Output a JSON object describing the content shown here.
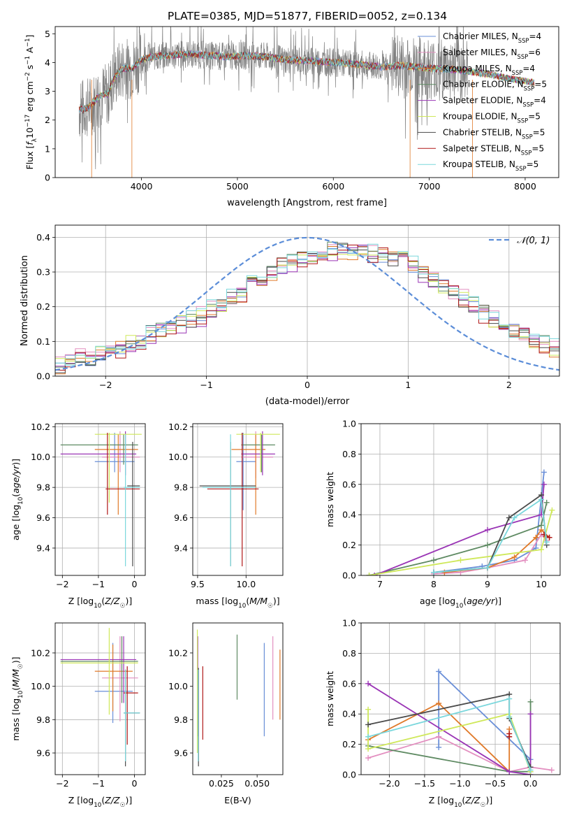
{
  "figure": {
    "title": "PLATE=0385, MJD=51877, FIBERID=0052, z=0.134"
  },
  "colors": {
    "chabrier_miles": "#6a8fd8",
    "salpeter_miles": "#e38fc0",
    "kroupa_miles": "#e07a2a",
    "chabrier_elodie": "#5e8a62",
    "salpeter_elodie": "#9a35b5",
    "kroupa_elodie": "#cfe85a",
    "chabrier_stelib": "#4a4a4a",
    "salpeter_stelib": "#b01818",
    "kroupa_stelib": "#7ad7dc",
    "data_spectrum": "#808080",
    "gauss_curve": "#5b8dd8"
  },
  "chart_data": [
    {
      "id": "spectrum",
      "type": "line",
      "title": "PLATE=0385, MJD=51877, FIBERID=0052, z=0.134",
      "xlabel": "wavelength [Angstrom, rest frame]",
      "xlim": [
        3100,
        8350
      ],
      "ylim": [
        0,
        5.25
      ],
      "xticks": [
        4000,
        5000,
        6000,
        7000,
        8000
      ],
      "yticks": [
        0,
        1,
        2,
        3,
        4,
        5
      ],
      "grid": false,
      "legend_placement": "right",
      "legend": [
        {
          "model": "Chabrier MILES",
          "n": "4"
        },
        {
          "model": "Salpeter MILES",
          "n": "6"
        },
        {
          "model": "Kroupa MILES",
          "n": "4"
        },
        {
          "model": "Chabrier ELODIE",
          "n": "5"
        },
        {
          "model": "Salpeter ELODIE",
          "n": "4"
        },
        {
          "model": "Kroupa ELODIE",
          "n": "5"
        },
        {
          "model": "Chabrier STELIB",
          "n": "5"
        },
        {
          "model": "Salpeter STELIB",
          "n": "5"
        },
        {
          "model": "Kroupa STELIB",
          "n": "5"
        }
      ],
      "data_range": [
        3350,
        7400
      ],
      "model_continuum": [
        [
          3350,
          2.35
        ],
        [
          3450,
          2.45
        ],
        [
          3500,
          2.6
        ],
        [
          3550,
          2.8
        ],
        [
          3600,
          2.9
        ],
        [
          3650,
          2.9
        ],
        [
          3700,
          3.4
        ],
        [
          3800,
          3.8
        ],
        [
          3900,
          3.8
        ],
        [
          4000,
          4.1
        ],
        [
          4100,
          4.2
        ],
        [
          4300,
          4.25
        ],
        [
          4500,
          4.3
        ],
        [
          4700,
          4.25
        ],
        [
          4900,
          4.2
        ],
        [
          5100,
          4.25
        ],
        [
          5300,
          4.2
        ],
        [
          5500,
          4.1
        ],
        [
          5800,
          4.05
        ],
        [
          6200,
          3.95
        ],
        [
          6500,
          3.85
        ],
        [
          6700,
          3.9
        ],
        [
          7000,
          3.8
        ],
        [
          7300,
          3.75
        ],
        [
          7600,
          3.6
        ],
        [
          7900,
          3.4
        ],
        [
          8100,
          3.3
        ]
      ],
      "model_cut_x": [
        3480,
        3900,
        6800,
        7450
      ]
    },
    {
      "id": "residuals",
      "type": "bar",
      "xlabel": "(data-model)/error",
      "ylabel": "Normed distribution",
      "xlim": [
        -2.5,
        2.5
      ],
      "ylim": [
        0,
        0.435
      ],
      "xticks": [
        -2,
        -1,
        0,
        1,
        2
      ],
      "yticks": [
        0.0,
        0.1,
        0.2,
        0.3,
        0.4
      ],
      "grid": true,
      "legend_placement": "top-right",
      "bin_width": 0.1,
      "curve_label": "𝒩(0, 1)",
      "base_hist": [
        0.03,
        0.04,
        0.05,
        0.05,
        0.06,
        0.07,
        0.08,
        0.09,
        0.1,
        0.12,
        0.13,
        0.14,
        0.15,
        0.16,
        0.17,
        0.19,
        0.2,
        0.22,
        0.24,
        0.26,
        0.28,
        0.3,
        0.32,
        0.33,
        0.34,
        0.35,
        0.35,
        0.36,
        0.36,
        0.36,
        0.36,
        0.35,
        0.35,
        0.34,
        0.33,
        0.32,
        0.3,
        0.28,
        0.26,
        0.24,
        0.22,
        0.2,
        0.18,
        0.16,
        0.15,
        0.13,
        0.12,
        0.1,
        0.09,
        0.08
      ]
    },
    {
      "id": "age_vs_Z",
      "type": "scatter",
      "xlabel": "Z [log10(Z/Z☉)]",
      "ylabel": "age  [log10(age/yr)]",
      "xlim": [
        -2.2,
        0.3
      ],
      "ylim": [
        9.22,
        10.22
      ],
      "xticks": [
        -2,
        -1,
        0
      ],
      "yticks": [
        9.4,
        9.6,
        9.8,
        10.0,
        10.2
      ],
      "grid": true,
      "points": [
        {
          "m": "chabrier_miles",
          "x": -0.55,
          "xe": [
            -1.1,
            0.0
          ],
          "y": 9.97,
          "ye": [
            9.9,
            10.16
          ]
        },
        {
          "m": "salpeter_miles",
          "x": -0.4,
          "xe": [
            -0.9,
            0.15
          ],
          "y": 10.0,
          "ye": [
            9.9,
            10.17
          ]
        },
        {
          "m": "kroupa_miles",
          "x": -0.45,
          "xe": [
            -1.1,
            0.1
          ],
          "y": 10.05,
          "ye": [
            9.62,
            10.15
          ]
        },
        {
          "m": "chabrier_elodie",
          "x": -0.3,
          "xe": [
            -2.05,
            0.1
          ],
          "y": 10.08,
          "ye": [
            9.95,
            10.15
          ]
        },
        {
          "m": "salpeter_elodie",
          "x": -0.25,
          "xe": [
            -2.05,
            0.05
          ],
          "y": 10.02,
          "ye": [
            9.88,
            10.17
          ]
        },
        {
          "m": "kroupa_elodie",
          "x": -0.7,
          "xe": [
            -1.1,
            0.2
          ],
          "y": 10.15,
          "ye": [
            9.7,
            10.16
          ]
        },
        {
          "m": "chabrier_stelib",
          "x": -0.05,
          "xe": [
            -0.2,
            0.15
          ],
          "y": 9.81,
          "ye": [
            9.28,
            10.1
          ]
        },
        {
          "m": "salpeter_stelib",
          "x": -0.75,
          "xe": [
            -0.8,
            0.15
          ],
          "y": 9.79,
          "ye": [
            9.62,
            10.16
          ]
        },
        {
          "m": "kroupa_stelib",
          "x": -0.25,
          "xe": [
            -0.3,
            0.15
          ],
          "y": 9.8,
          "ye": [
            9.28,
            10.15
          ]
        }
      ]
    },
    {
      "id": "age_vs_mass",
      "type": "scatter",
      "xlabel": "mass [log10(M/M☉)]",
      "xlim": [
        9.45,
        10.38
      ],
      "ylim": [
        9.22,
        10.22
      ],
      "xticks": [
        9.5,
        10.0
      ],
      "yticks": [
        9.4,
        9.6,
        9.8,
        10.0,
        10.2
      ],
      "grid": true,
      "points": [
        {
          "m": "chabrier_miles",
          "x": 9.97,
          "xe": [
            9.9,
            10.1
          ],
          "y": 9.97,
          "ye": [
            9.65,
            10.16
          ]
        },
        {
          "m": "salpeter_miles",
          "x": 10.1,
          "xe": [
            9.95,
            10.28
          ],
          "y": 10.0,
          "ye": [
            9.86,
            10.17
          ]
        },
        {
          "m": "kroupa_miles",
          "x": 10.1,
          "xe": [
            9.85,
            10.2
          ],
          "y": 10.05,
          "ye": [
            9.62,
            10.15
          ]
        },
        {
          "m": "chabrier_elodie",
          "x": 10.16,
          "xe": [
            9.95,
            10.3
          ],
          "y": 10.08,
          "ye": [
            9.9,
            10.15
          ]
        },
        {
          "m": "salpeter_elodie",
          "x": 10.17,
          "xe": [
            9.95,
            10.3
          ],
          "y": 10.02,
          "ye": [
            9.88,
            10.17
          ]
        },
        {
          "m": "kroupa_elodie",
          "x": 10.15,
          "xe": [
            9.9,
            10.35
          ],
          "y": 10.15,
          "ye": [
            9.9,
            10.16
          ]
        },
        {
          "m": "chabrier_stelib",
          "x": 9.84,
          "xe": [
            9.52,
            10.1
          ],
          "y": 9.81,
          "ye": [
            9.28,
            10.1
          ]
        },
        {
          "m": "salpeter_stelib",
          "x": 9.96,
          "xe": [
            9.6,
            10.13
          ],
          "y": 9.79,
          "ye": [
            9.28,
            10.16
          ]
        },
        {
          "m": "kroupa_stelib",
          "x": 9.84,
          "xe": [
            9.55,
            10.1
          ],
          "y": 9.8,
          "ye": [
            9.28,
            10.15
          ]
        }
      ]
    },
    {
      "id": "weight_vs_age",
      "type": "line",
      "xlabel": "age  [log10(age/yr)]",
      "ylabel": "mass weight",
      "xlim": [
        6.65,
        10.35
      ],
      "ylim": [
        0,
        1
      ],
      "xticks": [
        7,
        8,
        9,
        10
      ],
      "yticks": [
        0.0,
        0.2,
        0.4,
        0.6,
        0.8,
        1.0
      ],
      "grid": true,
      "series": [
        {
          "m": "chabrier_miles",
          "x": [
            8.0,
            8.9,
            9.5,
            9.9,
            10.05
          ],
          "y": [
            0.02,
            0.06,
            0.1,
            0.18,
            0.68
          ]
        },
        {
          "m": "salpeter_miles",
          "x": [
            8.0,
            8.5,
            9.0,
            9.7,
            10.0,
            10.1
          ],
          "y": [
            0.01,
            0.02,
            0.05,
            0.1,
            0.27,
            0.23
          ]
        },
        {
          "m": "kroupa_miles",
          "x": [
            8.2,
            9.0,
            9.5,
            9.9,
            10.0,
            10.15
          ],
          "y": [
            0.02,
            0.05,
            0.12,
            0.25,
            0.3,
            0.25
          ]
        },
        {
          "m": "chabrier_elodie",
          "x": [
            6.8,
            8.0,
            9.0,
            10.0,
            10.1
          ],
          "y": [
            0.0,
            0.1,
            0.2,
            0.33,
            0.48
          ]
        },
        {
          "m": "salpeter_elodie",
          "x": [
            6.9,
            9.0,
            10.0,
            10.05
          ],
          "y": [
            0.0,
            0.3,
            0.4,
            0.6
          ]
        },
        {
          "m": "kroupa_elodie",
          "x": [
            6.8,
            8.5,
            10.0,
            10.2
          ],
          "y": [
            0.0,
            0.1,
            0.17,
            0.43
          ]
        },
        {
          "m": "chabrier_stelib",
          "x": [
            8.0,
            9.0,
            9.4,
            10.0,
            10.1
          ],
          "y": [
            0.02,
            0.05,
            0.38,
            0.53,
            0.2
          ]
        },
        {
          "m": "salpeter_stelib",
          "x": [
            10.05,
            10.15
          ],
          "y": [
            0.27,
            0.25
          ]
        },
        {
          "m": "kroupa_stelib",
          "x": [
            8.0,
            9.0,
            9.5,
            10.0,
            10.1
          ],
          "y": [
            0.02,
            0.05,
            0.38,
            0.5,
            0.22
          ]
        }
      ]
    },
    {
      "id": "mass_vs_Z",
      "type": "scatter",
      "xlabel": "Z [log10(Z/Z☉)]",
      "ylabel": "mass [log10(M/M☉)]",
      "xlim": [
        -2.2,
        0.3
      ],
      "ylim": [
        9.47,
        10.38
      ],
      "xticks": [
        -2,
        -1,
        0
      ],
      "yticks": [
        9.6,
        9.8,
        10.0,
        10.2
      ],
      "grid": true,
      "points": [
        {
          "m": "chabrier_miles",
          "x": -0.6,
          "xe": [
            -1.1,
            -0.05
          ],
          "y": 9.97,
          "ye": [
            9.78,
            10.26
          ]
        },
        {
          "m": "salpeter_miles",
          "x": -0.4,
          "xe": [
            -0.9,
            0.1
          ],
          "y": 10.05,
          "ye": [
            9.79,
            10.3
          ]
        },
        {
          "m": "kroupa_miles",
          "x": -0.6,
          "xe": [
            -1.1,
            -0.05
          ],
          "y": 10.09,
          "ye": [
            9.85,
            10.25
          ]
        },
        {
          "m": "chabrier_elodie",
          "x": -0.35,
          "xe": [
            -2.05,
            0.1
          ],
          "y": 10.15,
          "ye": [
            9.9,
            10.3
          ]
        },
        {
          "m": "salpeter_elodie",
          "x": -0.3,
          "xe": [
            -2.05,
            0.05
          ],
          "y": 10.16,
          "ye": [
            9.9,
            10.3
          ]
        },
        {
          "m": "kroupa_elodie",
          "x": -0.7,
          "xe": [
            -2.05,
            0.1
          ],
          "y": 10.14,
          "ye": [
            9.83,
            10.35
          ]
        },
        {
          "m": "chabrier_stelib",
          "x": -0.25,
          "xe": [
            -0.3,
            0.15
          ],
          "y": 9.84,
          "ye": [
            9.52,
            10.1
          ]
        },
        {
          "m": "salpeter_stelib",
          "x": -0.2,
          "xe": [
            -0.3,
            0.1
          ],
          "y": 9.96,
          "ye": [
            9.65,
            10.12
          ]
        },
        {
          "m": "kroupa_stelib",
          "x": -0.25,
          "xe": [
            -0.3,
            0.15
          ],
          "y": 9.84,
          "ye": [
            9.55,
            10.1
          ]
        }
      ]
    },
    {
      "id": "mass_vs_ebv",
      "type": "scatter",
      "xlabel": "E(B-V)",
      "xlim": [
        0.005,
        0.068
      ],
      "ylim": [
        9.47,
        10.38
      ],
      "xticks": [
        0.025,
        0.05
      ],
      "xticklabels": [
        "0.025",
        "0.050"
      ],
      "yticks": [
        9.6,
        9.8,
        10.0,
        10.2
      ],
      "grid": false,
      "points": [
        {
          "m": "chabrier_miles",
          "x": 0.055,
          "y": 9.97,
          "ye": [
            9.7,
            10.26
          ]
        },
        {
          "m": "salpeter_miles",
          "x": 0.061,
          "y": 10.05,
          "ye": [
            9.8,
            10.3
          ]
        },
        {
          "m": "kroupa_miles",
          "x": 0.066,
          "y": 10.09,
          "ye": [
            9.8,
            10.22
          ]
        },
        {
          "m": "chabrier_elodie",
          "x": 0.036,
          "y": 10.15,
          "ye": [
            9.92,
            10.31
          ]
        },
        {
          "m": "salpeter_elodie",
          "x": 0.0085,
          "y": 10.16,
          "ye": [
            9.7,
            10.3
          ]
        },
        {
          "m": "kroupa_elodie",
          "x": 0.0082,
          "y": 10.14,
          "ye": [
            9.6,
            10.34
          ]
        },
        {
          "m": "chabrier_stelib",
          "x": 0.009,
          "y": 9.84,
          "ye": [
            9.52,
            10.11
          ]
        },
        {
          "m": "salpeter_stelib",
          "x": 0.012,
          "y": 9.96,
          "ye": [
            9.68,
            10.12
          ]
        },
        {
          "m": "kroupa_stelib",
          "x": 0.0088,
          "y": 9.84,
          "ye": [
            9.55,
            10.1
          ]
        }
      ]
    },
    {
      "id": "weight_vs_Z",
      "type": "line",
      "xlabel": "Z [log10(Z/Z☉)]",
      "ylabel": "mass weight",
      "xlim": [
        -2.4,
        0.42
      ],
      "ylim": [
        0,
        1
      ],
      "xticks": [
        -2.0,
        -1.5,
        -1.0,
        -0.5,
        0.0
      ],
      "yticks": [
        0.0,
        0.2,
        0.4,
        0.6,
        0.8,
        1.0
      ],
      "grid": true,
      "series": [
        {
          "m": "chabrier_miles",
          "x": [
            -1.3,
            -1.3,
            0.0,
            0.0
          ],
          "y": [
            0.18,
            0.68,
            0.1,
            0.02
          ]
        },
        {
          "m": "salpeter_miles",
          "x": [
            -2.3,
            -1.3,
            -0.3,
            0.0,
            0.3
          ],
          "y": [
            0.11,
            0.25,
            0.02,
            0.05,
            0.03
          ]
        },
        {
          "m": "kroupa_miles",
          "x": [
            -2.3,
            -1.3,
            -0.3,
            -0.3
          ],
          "y": [
            0.23,
            0.47,
            0.02,
            0.3
          ]
        },
        {
          "m": "chabrier_elodie",
          "x": [
            -2.3,
            -0.3,
            0.0,
            0.0
          ],
          "y": [
            0.19,
            0.02,
            0.02,
            0.48
          ]
        },
        {
          "m": "salpeter_elodie",
          "x": [
            -2.3,
            -0.3,
            0.0,
            0.0
          ],
          "y": [
            0.6,
            0.02,
            0.0,
            0.4
          ]
        },
        {
          "m": "kroupa_elodie",
          "x": [
            -2.3,
            -2.3,
            -0.3,
            0.0
          ],
          "y": [
            0.43,
            0.17,
            0.4,
            0.02
          ]
        },
        {
          "m": "chabrier_stelib",
          "x": [
            -2.3,
            -0.3,
            -0.3,
            0.0
          ],
          "y": [
            0.33,
            0.53,
            0.37,
            0.05
          ]
        },
        {
          "m": "salpeter_stelib",
          "x": [
            -0.3,
            -0.3
          ],
          "y": [
            0.27,
            0.25
          ]
        },
        {
          "m": "kroupa_stelib",
          "x": [
            -2.3,
            -0.3,
            -0.3,
            0.0
          ],
          "y": [
            0.25,
            0.5,
            0.38,
            0.03
          ]
        }
      ]
    }
  ]
}
